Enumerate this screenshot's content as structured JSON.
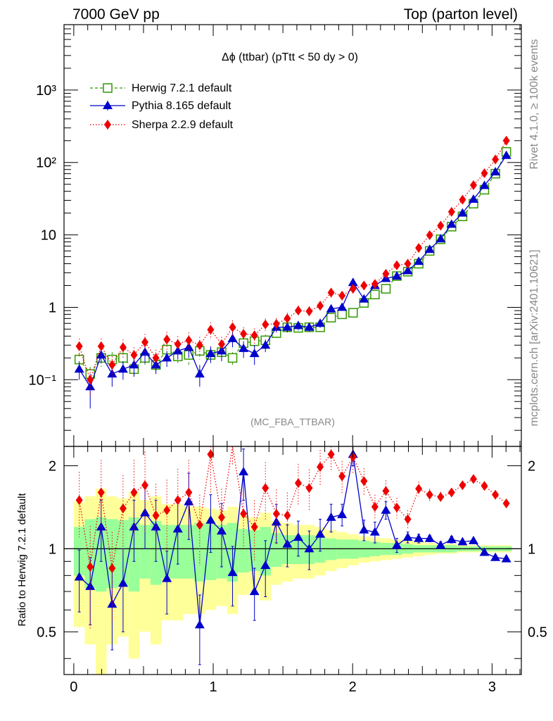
{
  "header": {
    "left": "7000 GeV pp",
    "right": "Top (parton level)"
  },
  "side_labels": {
    "rivet": "Rivet 4.1.0, ≥ 100k events",
    "mcplots": "mcplots.cern.ch [arXiv:2401.10621]"
  },
  "chart_data": [
    {
      "type": "line",
      "title": "Δϕ (ttbar) (pTtt < 50 dy > 0)",
      "analysis_label": "(MC_FBA_TTBAR)",
      "yscale": "log",
      "ylim": [
        0.012,
        8000
      ],
      "xlim": [
        -0.07,
        3.21
      ],
      "yticks": [
        {
          "value": 0.1,
          "label": "10⁻¹"
        },
        {
          "value": 1,
          "label": "1"
        },
        {
          "value": 10,
          "label": "10"
        },
        {
          "value": 100,
          "label": "10²"
        },
        {
          "value": 1000,
          "label": "10³"
        }
      ],
      "x": [
        0.0393,
        0.1178,
        0.1963,
        0.2749,
        0.3534,
        0.432,
        0.5105,
        0.589,
        0.6676,
        0.7461,
        0.8247,
        0.9032,
        0.9817,
        1.0603,
        1.1388,
        1.2174,
        1.2959,
        1.3744,
        1.453,
        1.5315,
        1.6101,
        1.6886,
        1.7671,
        1.8457,
        1.9242,
        2.0028,
        2.0813,
        2.1598,
        2.2384,
        2.3169,
        2.3955,
        2.474,
        2.5525,
        2.6311,
        2.7096,
        2.7882,
        2.8667,
        2.9452,
        3.0238,
        3.1023
      ],
      "series": [
        {
          "name": "Herwig 7.2.1 default",
          "color": "#339900",
          "marker": "open-square",
          "line": "dashed",
          "values": [
            0.19,
            0.12,
            0.2,
            0.19,
            0.2,
            0.14,
            0.2,
            0.16,
            0.26,
            0.21,
            0.22,
            0.25,
            0.22,
            0.24,
            0.2,
            0.32,
            0.34,
            0.35,
            0.44,
            0.53,
            0.52,
            0.53,
            0.53,
            0.72,
            0.8,
            0.84,
            1.15,
            1.5,
            1.8,
            2.7,
            3.1,
            4.0,
            6.0,
            8.7,
            13.0,
            18.0,
            27.0,
            42.0,
            70.0,
            140.0
          ],
          "err": [
            0.04,
            0.03,
            0.05,
            0.05,
            0.05,
            0.03,
            0.04,
            0.03,
            0.06,
            0.04,
            0.06,
            0.06,
            0.05,
            0.05,
            0.04,
            0.06,
            0.06,
            0.07,
            0.06,
            0.06,
            0.05,
            0.06,
            0.05,
            0.06,
            0.05,
            0.05,
            0.06,
            0.06,
            0.08,
            0.1,
            0.1,
            0.15,
            0.2,
            0.3,
            0.4,
            0.5,
            0.7,
            1.0,
            1.5,
            2.5
          ]
        },
        {
          "name": "Pythia 8.165 default",
          "color": "#0000cc",
          "marker": "filled-triangle",
          "line": "solid",
          "values": [
            0.14,
            0.08,
            0.22,
            0.12,
            0.14,
            0.16,
            0.24,
            0.16,
            0.2,
            0.25,
            0.28,
            0.12,
            0.23,
            0.25,
            0.37,
            0.27,
            0.23,
            0.3,
            0.53,
            0.53,
            0.56,
            0.53,
            0.6,
            0.95,
            1.0,
            2.2,
            1.3,
            2.0,
            2.5,
            2.7,
            3.2,
            4.3,
            6.3,
            8.8,
            14.0,
            20.0,
            31.0,
            48.0,
            74.0,
            125.0
          ],
          "err": [
            0.04,
            0.04,
            0.05,
            0.04,
            0.04,
            0.05,
            0.07,
            0.04,
            0.05,
            0.06,
            0.08,
            0.04,
            0.06,
            0.07,
            0.09,
            0.07,
            0.07,
            0.06,
            0.08,
            0.08,
            0.08,
            0.07,
            0.08,
            0.1,
            0.1,
            0.18,
            0.12,
            0.15,
            0.18,
            0.2,
            0.2,
            0.3,
            0.4,
            0.5,
            0.6,
            0.8,
            1.0,
            1.5,
            2.0,
            3.0
          ]
        },
        {
          "name": "Sherpa 2.2.9 default",
          "color": "#ee0000",
          "marker": "filled-diamond",
          "line": "dotted",
          "values": [
            0.29,
            0.1,
            0.29,
            0.16,
            0.28,
            0.22,
            0.33,
            0.2,
            0.36,
            0.31,
            0.35,
            0.3,
            0.49,
            0.31,
            0.53,
            0.43,
            0.41,
            0.58,
            0.59,
            0.7,
            0.9,
            0.88,
            1.05,
            1.6,
            1.45,
            1.8,
            2.0,
            2.1,
            2.9,
            3.8,
            4.0,
            6.6,
            9.9,
            13.4,
            20.8,
            30.6,
            48.5,
            71.0,
            110.0,
            200.0
          ],
          "err": [
            0.08,
            0.04,
            0.08,
            0.05,
            0.08,
            0.06,
            0.1,
            0.06,
            0.1,
            0.09,
            0.1,
            0.09,
            0.13,
            0.08,
            0.13,
            0.1,
            0.1,
            0.12,
            0.12,
            0.14,
            0.16,
            0.15,
            0.18,
            0.25,
            0.2,
            0.25,
            0.25,
            0.25,
            0.3,
            0.35,
            0.4,
            0.5,
            0.6,
            0.8,
            1.0,
            1.5,
            2.0,
            3.0,
            4.0,
            6.0
          ]
        }
      ]
    },
    {
      "type": "line",
      "ylabel": "Ratio to Herwig 7.2.1 default",
      "yscale": "log",
      "ylim": [
        0.35,
        2.35
      ],
      "xlim": [
        -0.07,
        3.21
      ],
      "yticks": [
        {
          "value": 0.5,
          "label": "0.5"
        },
        {
          "value": 1,
          "label": "1"
        },
        {
          "value": 2,
          "label": "2"
        }
      ],
      "xticks": [
        {
          "value": 0,
          "label": "0"
        },
        {
          "value": 1,
          "label": "1"
        },
        {
          "value": 2,
          "label": "2"
        },
        {
          "value": 3,
          "label": "3"
        }
      ],
      "band_inner": [
        0.2,
        0.28,
        0.3,
        0.28,
        0.27,
        0.3,
        0.22,
        0.26,
        0.22,
        0.22,
        0.22,
        0.24,
        0.23,
        0.22,
        0.24,
        0.18,
        0.17,
        0.2,
        0.14,
        0.12,
        0.12,
        0.12,
        0.11,
        0.09,
        0.08,
        0.08,
        0.07,
        0.06,
        0.05,
        0.05,
        0.04,
        0.03,
        0.03,
        0.03,
        0.03,
        0.02,
        0.02,
        0.02,
        0.02,
        0.02
      ],
      "band_outer": [
        0.48,
        0.55,
        0.65,
        0.55,
        0.52,
        0.6,
        0.5,
        0.55,
        0.45,
        0.45,
        0.42,
        0.42,
        0.4,
        0.38,
        0.42,
        0.32,
        0.3,
        0.35,
        0.26,
        0.24,
        0.22,
        0.22,
        0.2,
        0.17,
        0.15,
        0.13,
        0.11,
        0.1,
        0.09,
        0.08,
        0.07,
        0.06,
        0.05,
        0.04,
        0.04,
        0.03,
        0.03,
        0.03,
        0.03,
        0.03
      ],
      "series": [
        {
          "name": "Pythia 8.165 default",
          "color": "#0000cc",
          "values": [
            0.79,
            0.73,
            1.2,
            0.63,
            0.75,
            1.2,
            1.35,
            1.2,
            0.78,
            1.18,
            1.48,
            0.53,
            1.27,
            1.16,
            0.82,
            1.9,
            0.7,
            0.87,
            1.25,
            1.04,
            1.1,
            1.0,
            1.13,
            1.3,
            1.33,
            2.2,
            1.17,
            1.15,
            1.38,
            1.03,
            1.1,
            1.09,
            1.09,
            1.03,
            1.08,
            1.06,
            1.07,
            0.97,
            0.93,
            0.92
          ],
          "err": [
            0.2,
            0.2,
            0.3,
            0.2,
            0.25,
            0.3,
            0.35,
            0.3,
            0.2,
            0.3,
            0.4,
            0.15,
            0.3,
            0.3,
            0.2,
            0.4,
            0.15,
            0.2,
            0.2,
            0.18,
            0.16,
            0.16,
            0.15,
            0.15,
            0.12,
            0.2,
            0.1,
            0.1,
            0.1,
            0.06,
            0.05,
            0.04,
            0.03,
            0.03,
            0.03,
            0.02,
            0.02,
            0.02,
            0.02,
            0.02
          ]
        },
        {
          "name": "Sherpa 2.2.9 default",
          "color": "#ee0000",
          "values": [
            1.5,
            0.86,
            1.6,
            0.85,
            1.4,
            1.6,
            1.7,
            1.32,
            1.38,
            1.5,
            1.6,
            1.22,
            2.2,
            1.3,
            2.7,
            1.34,
            1.2,
            1.66,
            1.34,
            1.32,
            1.73,
            1.66,
            1.98,
            2.2,
            1.83,
            2.15,
            1.76,
            1.42,
            1.62,
            1.41,
            1.28,
            1.65,
            1.57,
            1.54,
            1.6,
            1.7,
            1.79,
            1.69,
            1.57,
            1.46
          ],
          "err": [
            0.4,
            0.35,
            0.5,
            0.3,
            0.45,
            0.5,
            0.55,
            0.4,
            0.4,
            0.45,
            0.5,
            0.35,
            0.6,
            0.35,
            0.7,
            0.35,
            0.3,
            0.4,
            0.3,
            0.28,
            0.3,
            0.28,
            0.3,
            0.3,
            0.25,
            0.28,
            0.2,
            0.15,
            0.15,
            0.12,
            0.1,
            0.1,
            0.08,
            0.07,
            0.06,
            0.06,
            0.05,
            0.05,
            0.04,
            0.04
          ]
        }
      ]
    }
  ]
}
